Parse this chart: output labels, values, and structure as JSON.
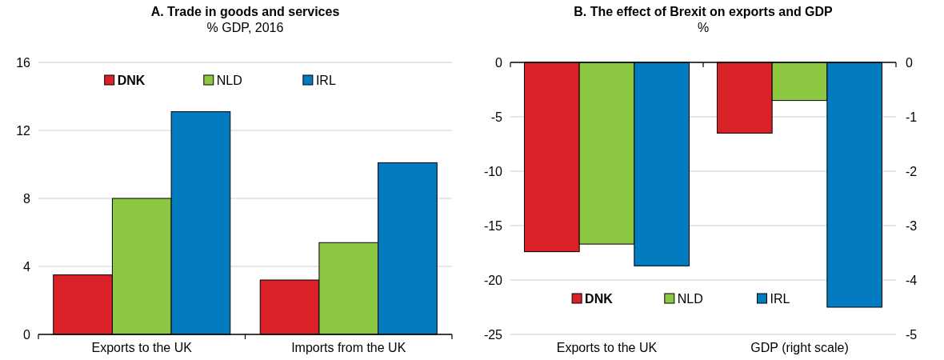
{
  "chart_data": [
    {
      "type": "bar",
      "title": "A. Trade in goods and services",
      "subtitle": "% GDP, 2016",
      "categories": [
        "Exports to the UK",
        "Imports from the UK"
      ],
      "series": [
        {
          "name": "DNK",
          "color": "#da2128",
          "values": [
            3.5,
            3.2
          ]
        },
        {
          "name": "NLD",
          "color": "#8cc841",
          "values": [
            8.0,
            5.4
          ]
        },
        {
          "name": "IRL",
          "color": "#037bc1",
          "values": [
            13.1,
            10.1
          ]
        }
      ],
      "ylim": [
        0,
        16
      ],
      "yticks": [
        0,
        4,
        8,
        12,
        16
      ],
      "grid": "y",
      "legend": "top"
    },
    {
      "type": "bar",
      "title": "B. The effect of Brexit on exports and GDP",
      "subtitle": "%",
      "categories": [
        "Exports to the UK",
        "GDP (right scale)"
      ],
      "series": [
        {
          "name": "DNK",
          "color": "#da2128",
          "values": [
            -17.4,
            null
          ]
        },
        {
          "name": "NLD",
          "color": "#8cc841",
          "values": [
            -16.7,
            null
          ]
        },
        {
          "name": "IRL",
          "color": "#037bc1",
          "values": [
            -18.7,
            null
          ]
        },
        {
          "color": "#da2128",
          "values": [
            null,
            -1.3
          ],
          "axis": "y2"
        },
        {
          "color": "#8cc841",
          "values": [
            null,
            -0.7
          ],
          "axis": "y2"
        },
        {
          "color": "#037bc1",
          "values": [
            null,
            -4.5
          ],
          "axis": "y2"
        }
      ],
      "ylim": [
        -25,
        0
      ],
      "yticks": [
        -25,
        -20,
        -15,
        -10,
        -5,
        0
      ],
      "y2lim": [
        -5,
        0
      ],
      "y2ticks": [
        -5,
        -4,
        -3,
        -2,
        -1,
        0
      ],
      "grid": "y",
      "legend": "bottom"
    }
  ]
}
